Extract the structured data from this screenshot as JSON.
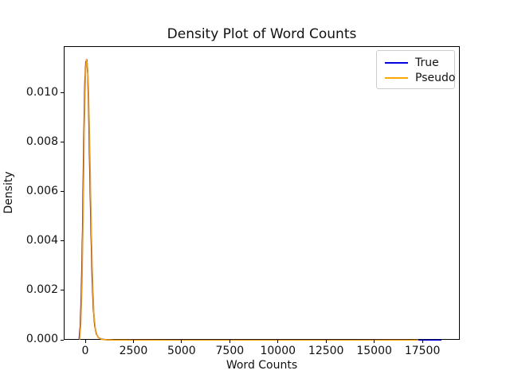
{
  "figure": {
    "background": "#ffffff"
  },
  "chart_data": {
    "type": "line",
    "title": "Density Plot of Word Counts",
    "xlabel": "Word Counts",
    "ylabel": "Density",
    "xlim": [
      -1117,
      19440
    ],
    "ylim": [
      0,
      0.0119
    ],
    "grid": false,
    "legend": {
      "position": "upper right",
      "entries": [
        "True",
        "Pseudo"
      ]
    },
    "xticks": [
      {
        "v": 0,
        "label": "0"
      },
      {
        "v": 2500,
        "label": "2500"
      },
      {
        "v": 5000,
        "label": "5000"
      },
      {
        "v": 7500,
        "label": "7500"
      },
      {
        "v": 10000,
        "label": "10000"
      },
      {
        "v": 12500,
        "label": "12500"
      },
      {
        "v": 15000,
        "label": "15000"
      },
      {
        "v": 17500,
        "label": "17500"
      }
    ],
    "yticks": [
      {
        "v": 0.0,
        "label": "0.000"
      },
      {
        "v": 0.002,
        "label": "0.002"
      },
      {
        "v": 0.004,
        "label": "0.004"
      },
      {
        "v": 0.006,
        "label": "0.006"
      },
      {
        "v": 0.008,
        "label": "0.008"
      },
      {
        "v": 0.01,
        "label": "0.010"
      }
    ],
    "series": [
      {
        "name": "True",
        "color": "#0000e0",
        "peak": {
          "x": 40,
          "density": 0.01138
        },
        "x": [
          -360,
          -300,
          -240,
          -180,
          -120,
          -60,
          -10,
          40,
          90,
          140,
          200,
          260,
          320,
          380,
          450,
          540,
          650,
          800,
          1000,
          1400,
          2500,
          5000,
          8000,
          11000,
          14000,
          16000,
          17200,
          18000,
          18450
        ],
        "y": [
          4e-05,
          0.0006,
          0.002,
          0.0045,
          0.008,
          0.0105,
          0.0113,
          0.01138,
          0.0108,
          0.0092,
          0.0068,
          0.0044,
          0.0025,
          0.0013,
          0.0006,
          0.00026,
          0.00012,
          6e-05,
          4e-05,
          2.5e-05,
          1.5e-05,
          1e-05,
          1e-05,
          1e-05,
          1e-05,
          1.2e-05,
          1.5e-05,
          2e-05,
          2.2e-05
        ]
      },
      {
        "name": "Pseudo",
        "color": "#ffa500",
        "peak": {
          "x": 20,
          "density": 0.0114
        },
        "x": [
          -330,
          -270,
          -210,
          -150,
          -90,
          -30,
          20,
          70,
          120,
          170,
          230,
          290,
          350,
          410,
          480,
          570,
          680,
          830,
          1050,
          1450,
          2600,
          5000,
          8000,
          11000,
          14000,
          15800,
          16800,
          17250
        ],
        "y": [
          4e-05,
          0.0007,
          0.0022,
          0.005,
          0.0085,
          0.0108,
          0.0114,
          0.0112,
          0.0104,
          0.0088,
          0.0063,
          0.004,
          0.0022,
          0.0011,
          0.0005,
          0.00022,
          0.0001,
          5e-05,
          3.5e-05,
          2.2e-05,
          1.5e-05,
          1e-05,
          1e-05,
          1e-05,
          1e-05,
          1.2e-05,
          1.5e-05,
          1.8e-05
        ]
      }
    ]
  }
}
